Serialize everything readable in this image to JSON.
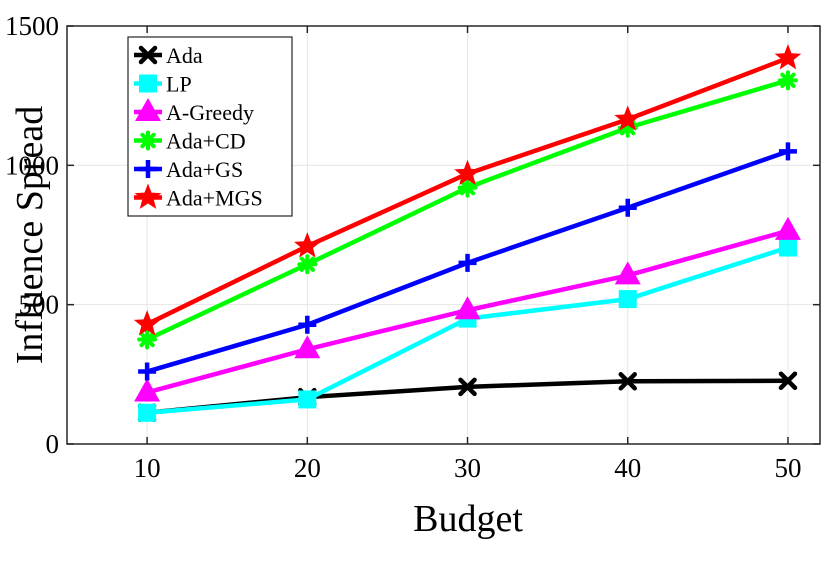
{
  "chart_data": {
    "type": "line",
    "title": "",
    "xlabel": "Budget",
    "ylabel": "Influence Spread",
    "x": [
      10,
      20,
      30,
      40,
      50
    ],
    "xlim": [
      5,
      52
    ],
    "ylim": [
      0,
      1500
    ],
    "xticks": [
      "10",
      "20",
      "30",
      "40",
      "50"
    ],
    "yticks": [
      "0",
      "500",
      "1000",
      "1500"
    ],
    "grid": true,
    "legend_position": "top-left",
    "series": [
      {
        "name": "Ada",
        "color": "#000000",
        "marker": "x",
        "values": [
          112,
          168,
          205,
          225,
          227
        ]
      },
      {
        "name": "LP",
        "color": "#00ffff",
        "marker": "square",
        "values": [
          112,
          160,
          450,
          520,
          705
        ]
      },
      {
        "name": "A-Greedy",
        "color": "#ff00ff",
        "marker": "triangle",
        "values": [
          185,
          340,
          480,
          605,
          765
        ]
      },
      {
        "name": "Ada+CD",
        "color": "#00ff00",
        "marker": "asterisk",
        "values": [
          375,
          645,
          920,
          1135,
          1305
        ]
      },
      {
        "name": "Ada+GS",
        "color": "#0000ff",
        "marker": "plus",
        "values": [
          260,
          428,
          650,
          848,
          1050
        ]
      },
      {
        "name": "Ada+MGS",
        "color": "#ff0000",
        "marker": "star",
        "values": [
          430,
          710,
          970,
          1165,
          1385
        ]
      }
    ]
  }
}
